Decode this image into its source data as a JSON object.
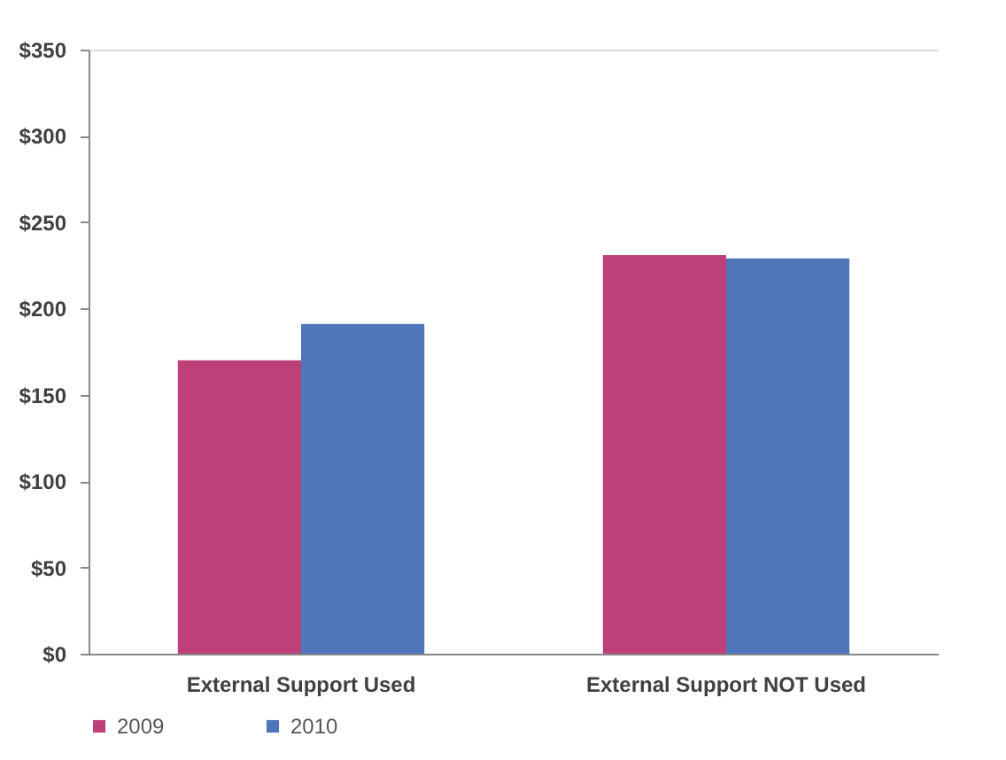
{
  "chart_data": {
    "type": "bar",
    "categories": [
      "External Support Used",
      "External Support NOT Used"
    ],
    "series": [
      {
        "name": "2009",
        "color": "#be4078",
        "values": [
          170,
          231
        ]
      },
      {
        "name": "2010",
        "color": "#4f76b8",
        "values": [
          191,
          229
        ]
      }
    ],
    "ylim": [
      0,
      350
    ],
    "yticks": [
      {
        "value": 0,
        "label": "$0"
      },
      {
        "value": 50,
        "label": "$50"
      },
      {
        "value": 100,
        "label": "$100"
      },
      {
        "value": 150,
        "label": "$150"
      },
      {
        "value": 200,
        "label": "$200"
      },
      {
        "value": 250,
        "label": "$250"
      },
      {
        "value": 300,
        "label": "$300"
      },
      {
        "value": 350,
        "label": "$350"
      }
    ],
    "grid": false,
    "legend": "bottom left"
  }
}
